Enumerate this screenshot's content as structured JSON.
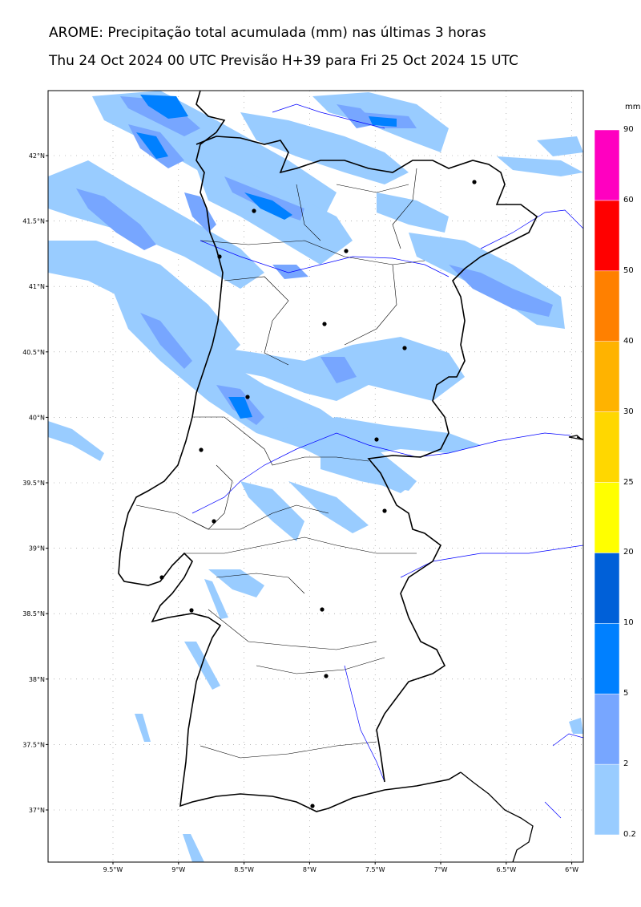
{
  "title_line1": "AROME: Precipitação total acumulada (mm) nas últimas 3 horas",
  "title_line2": "Thu 24 Oct 2024 00 UTC Previsão H+39 para Fri 25 Oct 2024 15 UTC",
  "lat_labels": [
    "42°N",
    "41.5°N",
    "41°N",
    "40.5°N",
    "40°N",
    "39.5°N",
    "39°N",
    "38.5°N",
    "38°N",
    "37.5°N",
    "37°N"
  ],
  "lon_labels": [
    "9.5°W",
    "9°W",
    "8.5°W",
    "8°W",
    "7.5°W",
    "7°W",
    "6.5°W",
    "6°W"
  ],
  "colorbar": {
    "unit": "mm",
    "ticks": [
      "0.2",
      "2",
      "5",
      "10",
      "20",
      "25",
      "30",
      "40",
      "50",
      "60",
      "90"
    ],
    "colors": [
      "#99ccff",
      "#77a6ff",
      "#0080ff",
      "#0060d8",
      "#ffff00",
      "#ffd700",
      "#ffb300",
      "#ff8000",
      "#ff0000",
      "#ff00c0"
    ]
  },
  "colors": {
    "precip_light": "#99ccff",
    "precip_medium": "#77a6ff",
    "precip_heavy": "#0080ff",
    "coast": "#000000",
    "border": "#000000",
    "rivers": "#0000ff"
  }
}
